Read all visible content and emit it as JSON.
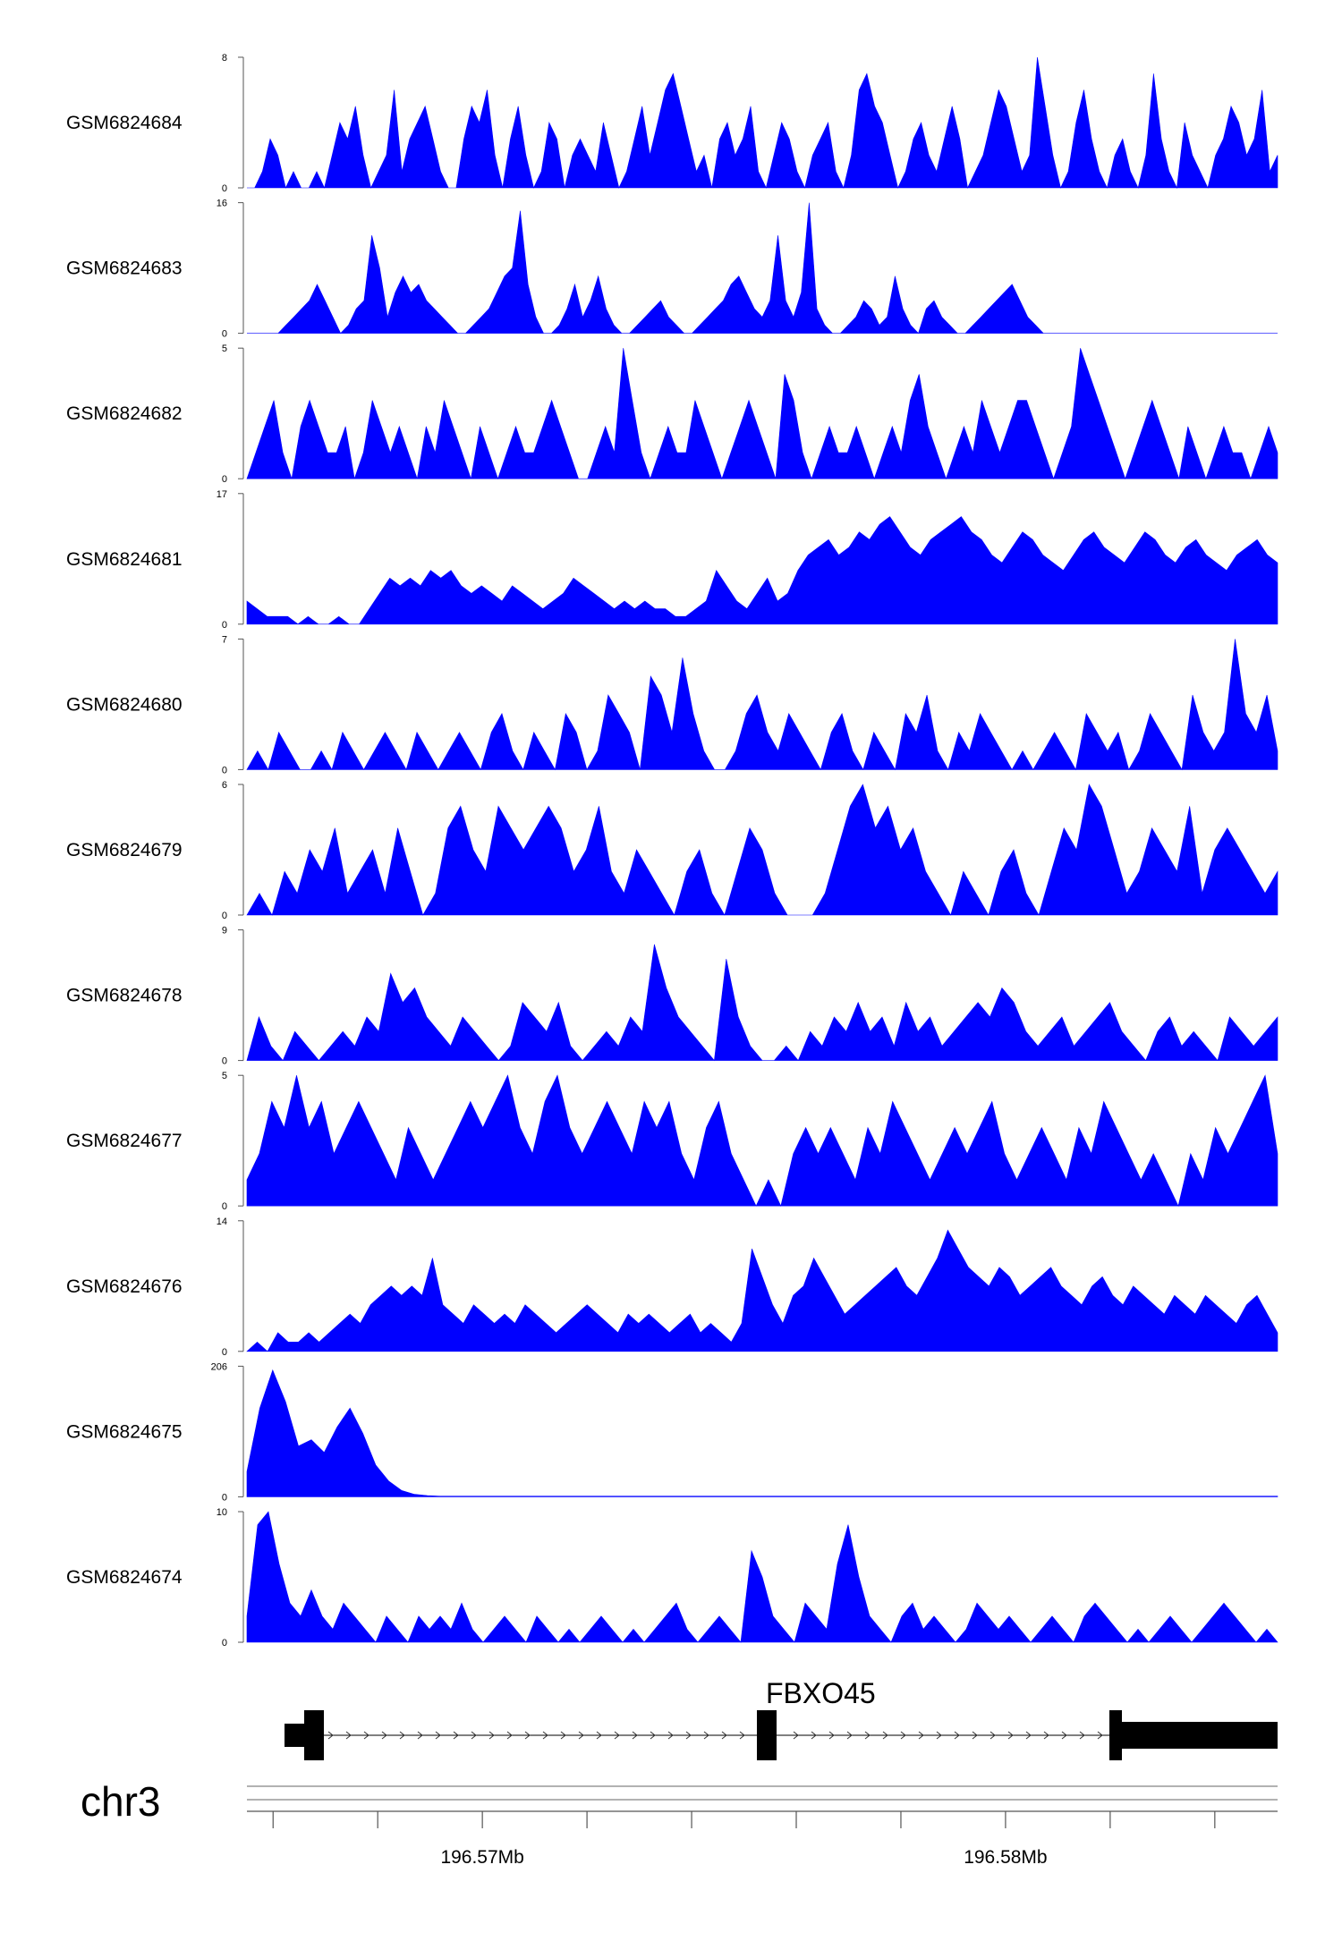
{
  "chart_data": {
    "type": "area",
    "chromosome": "chr3",
    "x_range_mb": [
      196.5655,
      196.5852
    ],
    "x_axis": {
      "major_ticks": [
        196.57,
        196.58
      ],
      "major_tick_labels": [
        "196.57Mb",
        "196.58Mb"
      ],
      "minor_tick_step_mb": 0.002
    },
    "colors": {
      "signal": "#0000ff",
      "gene": "#000000",
      "axis": "#555555"
    },
    "tracks": [
      {
        "name": "GSM6824684",
        "ymax": 8,
        "ymin": 0,
        "ymax_label": "8",
        "ymin_label": "0",
        "values": [
          0,
          0,
          1,
          3,
          2,
          0,
          1,
          0,
          0,
          1,
          0,
          2,
          4,
          3,
          5,
          2,
          0,
          1,
          2,
          6,
          1,
          3,
          4,
          5,
          3,
          1,
          0,
          0,
          3,
          5,
          4,
          6,
          2,
          0,
          3,
          5,
          2,
          0,
          1,
          4,
          3,
          0,
          2,
          3,
          2,
          1,
          4,
          2,
          0,
          1,
          3,
          5,
          2,
          4,
          6,
          7,
          5,
          3,
          1,
          2,
          0,
          3,
          4,
          2,
          3,
          5,
          1,
          0,
          2,
          4,
          3,
          1,
          0,
          2,
          3,
          4,
          1,
          0,
          2,
          6,
          7,
          5,
          4,
          2,
          0,
          1,
          3,
          4,
          2,
          1,
          3,
          5,
          3,
          0,
          1,
          2,
          4,
          6,
          5,
          3,
          1,
          2,
          8,
          5,
          2,
          0,
          1,
          4,
          6,
          3,
          1,
          0,
          2,
          3,
          1,
          0,
          2,
          7,
          3,
          1,
          0,
          4,
          2,
          1,
          0,
          2,
          3,
          5,
          4,
          2,
          3,
          6,
          1,
          2
        ]
      },
      {
        "name": "GSM6824683",
        "ymax": 16,
        "ymin": 0,
        "ymax_label": "16",
        "ymin_label": "0",
        "values": [
          0,
          0,
          0,
          0,
          0,
          1,
          2,
          3,
          4,
          6,
          4,
          2,
          0,
          1,
          3,
          4,
          12,
          8,
          2,
          5,
          7,
          5,
          6,
          4,
          3,
          2,
          1,
          0,
          0,
          1,
          2,
          3,
          5,
          7,
          8,
          15,
          6,
          2,
          0,
          0,
          1,
          3,
          6,
          2,
          4,
          7,
          3,
          1,
          0,
          0,
          1,
          2,
          3,
          4,
          2,
          1,
          0,
          0,
          1,
          2,
          3,
          4,
          6,
          7,
          5,
          3,
          2,
          4,
          12,
          4,
          2,
          5,
          16,
          3,
          1,
          0,
          0,
          1,
          2,
          4,
          3,
          1,
          2,
          7,
          3,
          1,
          0,
          3,
          4,
          2,
          1,
          0,
          0,
          1,
          2,
          3,
          4,
          5,
          6,
          4,
          2,
          1,
          0,
          0,
          0,
          0,
          0,
          0,
          0,
          0,
          0,
          0,
          0,
          0,
          0,
          0,
          0,
          0,
          0,
          0,
          0,
          0,
          0,
          0,
          0,
          0,
          0,
          0,
          0,
          0,
          0,
          0,
          0
        ]
      },
      {
        "name": "GSM6824682",
        "ymax": 5,
        "ymin": 0,
        "ymax_label": "5",
        "ymin_label": "0",
        "values": [
          0,
          1,
          2,
          3,
          1,
          0,
          2,
          3,
          2,
          1,
          1,
          2,
          0,
          1,
          3,
          2,
          1,
          2,
          1,
          0,
          2,
          1,
          3,
          2,
          1,
          0,
          2,
          1,
          0,
          1,
          2,
          1,
          1,
          2,
          3,
          2,
          1,
          0,
          0,
          1,
          2,
          1,
          5,
          3,
          1,
          0,
          1,
          2,
          1,
          1,
          3,
          2,
          1,
          0,
          1,
          2,
          3,
          2,
          1,
          0,
          4,
          3,
          1,
          0,
          1,
          2,
          1,
          1,
          2,
          1,
          0,
          1,
          2,
          1,
          3,
          4,
          2,
          1,
          0,
          1,
          2,
          1,
          3,
          2,
          1,
          2,
          3,
          3,
          2,
          1,
          0,
          1,
          2,
          5,
          4,
          3,
          2,
          1,
          0,
          1,
          2,
          3,
          2,
          1,
          0,
          2,
          1,
          0,
          1,
          2,
          1,
          1,
          0,
          1,
          2,
          1
        ]
      },
      {
        "name": "GSM6824681",
        "ymax": 17,
        "ymin": 0,
        "ymax_label": "17",
        "ymin_label": "0",
        "values": [
          3,
          2,
          1,
          1,
          1,
          0,
          1,
          0,
          0,
          1,
          0,
          0,
          2,
          4,
          6,
          5,
          6,
          5,
          7,
          6,
          7,
          5,
          4,
          5,
          4,
          3,
          5,
          4,
          3,
          2,
          3,
          4,
          6,
          5,
          4,
          3,
          2,
          3,
          2,
          3,
          2,
          2,
          1,
          1,
          2,
          3,
          7,
          5,
          3,
          2,
          4,
          6,
          3,
          4,
          7,
          9,
          10,
          11,
          9,
          10,
          12,
          11,
          13,
          14,
          12,
          10,
          9,
          11,
          12,
          13,
          14,
          12,
          11,
          9,
          8,
          10,
          12,
          11,
          9,
          8,
          7,
          9,
          11,
          12,
          10,
          9,
          8,
          10,
          12,
          11,
          9,
          8,
          10,
          11,
          9,
          8,
          7,
          9,
          10,
          11,
          9,
          8
        ]
      },
      {
        "name": "GSM6824680",
        "ymax": 7,
        "ymin": 0,
        "ymax_label": "7",
        "ymin_label": "0",
        "values": [
          0,
          1,
          0,
          2,
          1,
          0,
          0,
          1,
          0,
          2,
          1,
          0,
          1,
          2,
          1,
          0,
          2,
          1,
          0,
          1,
          2,
          1,
          0,
          2,
          3,
          1,
          0,
          2,
          1,
          0,
          3,
          2,
          0,
          1,
          4,
          3,
          2,
          0,
          5,
          4,
          2,
          6,
          3,
          1,
          0,
          0,
          1,
          3,
          4,
          2,
          1,
          3,
          2,
          1,
          0,
          2,
          3,
          1,
          0,
          2,
          1,
          0,
          3,
          2,
          4,
          1,
          0,
          2,
          1,
          3,
          2,
          1,
          0,
          1,
          0,
          1,
          2,
          1,
          0,
          3,
          2,
          1,
          2,
          0,
          1,
          3,
          2,
          1,
          0,
          4,
          2,
          1,
          2,
          7,
          3,
          2,
          4,
          1
        ]
      },
      {
        "name": "GSM6824679",
        "ymax": 6,
        "ymin": 0,
        "ymax_label": "6",
        "ymin_label": "0",
        "values": [
          0,
          1,
          0,
          2,
          1,
          3,
          2,
          4,
          1,
          2,
          3,
          1,
          4,
          2,
          0,
          1,
          4,
          5,
          3,
          2,
          5,
          4,
          3,
          4,
          5,
          4,
          2,
          3,
          5,
          2,
          1,
          3,
          2,
          1,
          0,
          2,
          3,
          1,
          0,
          2,
          4,
          3,
          1,
          0,
          0,
          0,
          1,
          3,
          5,
          6,
          4,
          5,
          3,
          4,
          2,
          1,
          0,
          2,
          1,
          0,
          2,
          3,
          1,
          0,
          2,
          4,
          3,
          6,
          5,
          3,
          1,
          2,
          4,
          3,
          2,
          5,
          1,
          3,
          4,
          3,
          2,
          1,
          2
        ]
      },
      {
        "name": "GSM6824678",
        "ymax": 9,
        "ymin": 0,
        "ymax_label": "9",
        "ymin_label": "0",
        "values": [
          0,
          3,
          1,
          0,
          2,
          1,
          0,
          1,
          2,
          1,
          3,
          2,
          6,
          4,
          5,
          3,
          2,
          1,
          3,
          2,
          1,
          0,
          1,
          4,
          3,
          2,
          4,
          1,
          0,
          1,
          2,
          1,
          3,
          2,
          8,
          5,
          3,
          2,
          1,
          0,
          7,
          3,
          1,
          0,
          0,
          1,
          0,
          2,
          1,
          3,
          2,
          4,
          2,
          3,
          1,
          4,
          2,
          3,
          1,
          2,
          3,
          4,
          3,
          5,
          4,
          2,
          1,
          2,
          3,
          1,
          2,
          3,
          4,
          2,
          1,
          0,
          2,
          3,
          1,
          2,
          1,
          0,
          3,
          2,
          1,
          2,
          3
        ]
      },
      {
        "name": "GSM6824677",
        "ymax": 5,
        "ymin": 0,
        "ymax_label": "5",
        "ymin_label": "0",
        "values": [
          1,
          2,
          4,
          3,
          5,
          3,
          4,
          2,
          3,
          4,
          3,
          2,
          1,
          3,
          2,
          1,
          2,
          3,
          4,
          3,
          4,
          5,
          3,
          2,
          4,
          5,
          3,
          2,
          3,
          4,
          3,
          2,
          4,
          3,
          4,
          2,
          1,
          3,
          4,
          2,
          1,
          0,
          1,
          0,
          2,
          3,
          2,
          3,
          2,
          1,
          3,
          2,
          4,
          3,
          2,
          1,
          2,
          3,
          2,
          3,
          4,
          2,
          1,
          2,
          3,
          2,
          1,
          3,
          2,
          4,
          3,
          2,
          1,
          2,
          1,
          0,
          2,
          1,
          3,
          2,
          3,
          4,
          5,
          2
        ]
      },
      {
        "name": "GSM6824676",
        "ymax": 14,
        "ymin": 0,
        "ymax_label": "14",
        "ymin_label": "0",
        "values": [
          0,
          1,
          0,
          2,
          1,
          1,
          2,
          1,
          2,
          3,
          4,
          3,
          5,
          6,
          7,
          6,
          7,
          6,
          10,
          5,
          4,
          3,
          5,
          4,
          3,
          4,
          3,
          5,
          4,
          3,
          2,
          3,
          4,
          5,
          4,
          3,
          2,
          4,
          3,
          4,
          3,
          2,
          3,
          4,
          2,
          3,
          2,
          1,
          3,
          11,
          8,
          5,
          3,
          6,
          7,
          10,
          8,
          6,
          4,
          5,
          6,
          7,
          8,
          9,
          7,
          6,
          8,
          10,
          13,
          11,
          9,
          8,
          7,
          9,
          8,
          6,
          7,
          8,
          9,
          7,
          6,
          5,
          7,
          8,
          6,
          5,
          7,
          6,
          5,
          4,
          6,
          5,
          4,
          6,
          5,
          4,
          3,
          5,
          6,
          4,
          2
        ]
      },
      {
        "name": "GSM6824675",
        "ymax": 206,
        "ymin": 0,
        "ymax_label": "206",
        "ymin_label": "0",
        "values": [
          40,
          140,
          200,
          150,
          80,
          90,
          70,
          110,
          140,
          100,
          50,
          25,
          10,
          4,
          2,
          1,
          1,
          1,
          1,
          1,
          1,
          1,
          1,
          1,
          1,
          1,
          1,
          1,
          1,
          1,
          1,
          1,
          1,
          1,
          1,
          1,
          1,
          1,
          1,
          1,
          1,
          1,
          1,
          1,
          1,
          1,
          1,
          1,
          1,
          1,
          1,
          1,
          1,
          1,
          1,
          1,
          1,
          1,
          1,
          1,
          1,
          1,
          1,
          1,
          1,
          1,
          1,
          1,
          1,
          1,
          1,
          1,
          1,
          1,
          1,
          1,
          1,
          1,
          1,
          1,
          1
        ]
      },
      {
        "name": "GSM6824674",
        "ymax": 10,
        "ymin": 0,
        "ymax_label": "10",
        "ymin_label": "0",
        "values": [
          2,
          9,
          10,
          6,
          3,
          2,
          4,
          2,
          1,
          3,
          2,
          1,
          0,
          2,
          1,
          0,
          2,
          1,
          2,
          1,
          3,
          1,
          0,
          1,
          2,
          1,
          0,
          2,
          1,
          0,
          1,
          0,
          1,
          2,
          1,
          0,
          1,
          0,
          1,
          2,
          3,
          1,
          0,
          1,
          2,
          1,
          0,
          7,
          5,
          2,
          1,
          0,
          3,
          2,
          1,
          6,
          9,
          5,
          2,
          1,
          0,
          2,
          3,
          1,
          2,
          1,
          0,
          1,
          3,
          2,
          1,
          2,
          1,
          0,
          1,
          2,
          1,
          0,
          2,
          3,
          2,
          1,
          0,
          1,
          0,
          1,
          2,
          1,
          0,
          1,
          2,
          3,
          2,
          1,
          0,
          1,
          0
        ]
      }
    ],
    "gene": {
      "name": "FBXO45",
      "strand": "+"
    }
  }
}
